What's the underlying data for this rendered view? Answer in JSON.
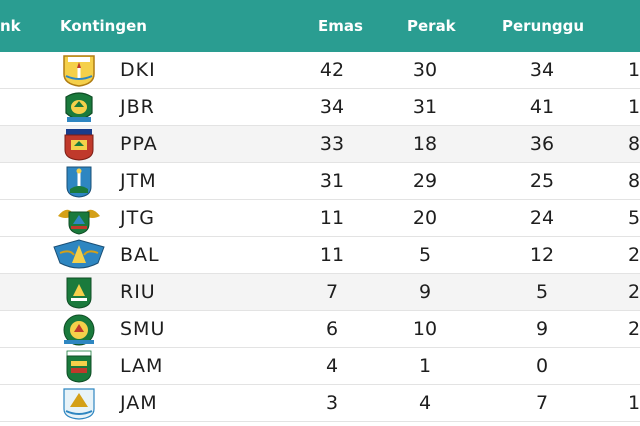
{
  "header": {
    "rank_label": "nk",
    "kontingen_label": "Kontingen",
    "emas_label": "Emas",
    "perak_label": "Perak",
    "perunggu_label": "Perunggu",
    "header_color": "#2a9d91"
  },
  "rows": [
    {
      "code": "DKI",
      "emas": "42",
      "perak": "30",
      "perunggu": "34",
      "total": "1",
      "logo": "dki-jakarta-emblem",
      "logo_color": "#d4a017"
    },
    {
      "code": "JBR",
      "emas": "34",
      "perak": "31",
      "perunggu": "41",
      "total": "1",
      "logo": "jawa-barat-emblem",
      "logo_color": "#1a7a3c"
    },
    {
      "code": "PPA",
      "emas": "33",
      "perak": "18",
      "perunggu": "36",
      "total": "8",
      "logo": "papua-emblem",
      "logo_color": "#c0392b"
    },
    {
      "code": "JTM",
      "emas": "31",
      "perak": "29",
      "perunggu": "25",
      "total": "8",
      "logo": "jawa-timur-emblem",
      "logo_color": "#2e86c1"
    },
    {
      "code": "JTG",
      "emas": "11",
      "perak": "20",
      "perunggu": "24",
      "total": "5",
      "logo": "jawa-tengah-emblem",
      "logo_color": "#d4a017"
    },
    {
      "code": "BAL",
      "emas": "11",
      "perak": "5",
      "perunggu": "12",
      "total": "2",
      "logo": "bali-emblem",
      "logo_color": "#2e86c1"
    },
    {
      "code": "RIU",
      "emas": "7",
      "perak": "9",
      "perunggu": "5",
      "total": "2",
      "logo": "riau-emblem",
      "logo_color": "#1a7a3c"
    },
    {
      "code": "SMU",
      "emas": "6",
      "perak": "10",
      "perunggu": "9",
      "total": "2",
      "logo": "sumatera-utara-emblem",
      "logo_color": "#1a7a3c"
    },
    {
      "code": "LAM",
      "emas": "4",
      "perak": "1",
      "perunggu": "0",
      "total": "",
      "logo": "lampung-emblem",
      "logo_color": "#1a7a3c"
    },
    {
      "code": "JAM",
      "emas": "3",
      "perak": "4",
      "perunggu": "7",
      "total": "1",
      "logo": "jambi-emblem",
      "logo_color": "#2e86c1"
    }
  ]
}
